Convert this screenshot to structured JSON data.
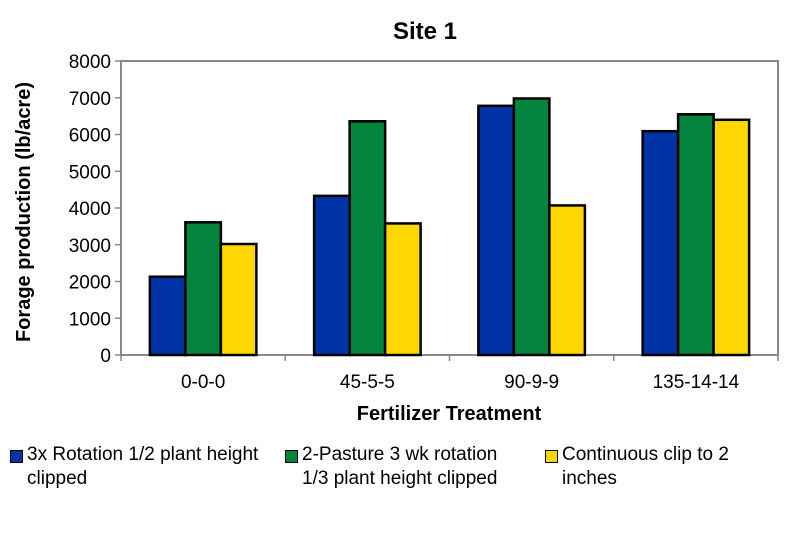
{
  "chart_data": {
    "type": "bar",
    "title": "Site 1",
    "xlabel": "Fertilizer Treatment",
    "ylabel": "Forage production (lb/acre)",
    "ylim": [
      0,
      8000
    ],
    "yticks": [
      0,
      1000,
      2000,
      3000,
      4000,
      5000,
      6000,
      7000,
      8000
    ],
    "grid": false,
    "legend_position": "bottom",
    "categories": [
      "0-0-0",
      "45-5-5",
      "90-9-9",
      "135-14-14"
    ],
    "series": [
      {
        "name": "3x Rotation 1/2 plant height clipped",
        "color": "#0033A6",
        "values": [
          2130,
          4330,
          6780,
          6090
        ]
      },
      {
        "name": "2-Pasture 3 wk rotation 1/3 plant height clipped",
        "color": "#05843E",
        "values": [
          3610,
          6360,
          6980,
          6550
        ]
      },
      {
        "name": "Continuous clip to 2 inches",
        "color": "#FFD700",
        "values": [
          3020,
          3580,
          4070,
          6400
        ]
      }
    ]
  }
}
